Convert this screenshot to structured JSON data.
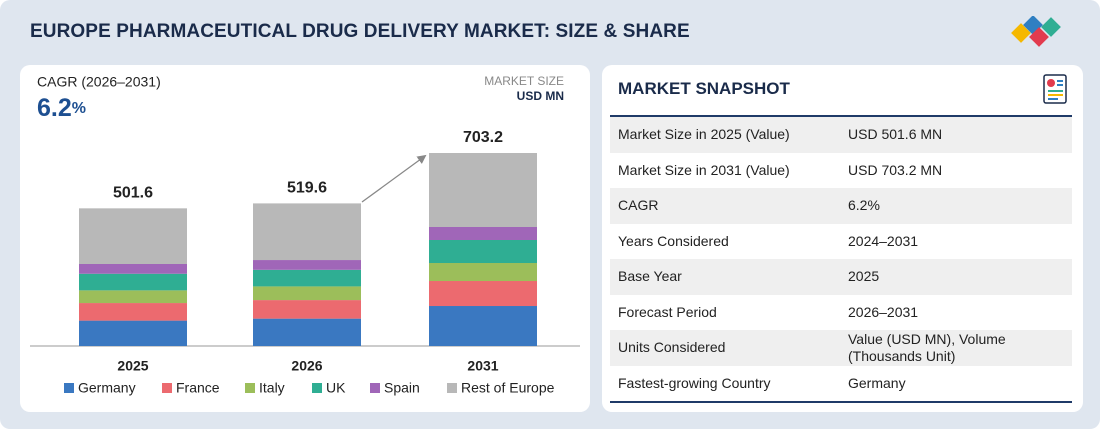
{
  "header": {
    "title": "EUROPE PHARMACEUTICAL DRUG DELIVERY MARKET: SIZE & SHARE"
  },
  "chart_data": {
    "type": "bar",
    "stacked": true,
    "cagr_label": "CAGR (2026–2031)",
    "cagr_value": "6.2",
    "cagr_unit": "%",
    "unit_title": "MARKET SIZE",
    "unit": "USD MN",
    "categories": [
      "2025",
      "2026",
      "2031"
    ],
    "totals": [
      501.6,
      519.6,
      703.2
    ],
    "series": [
      {
        "name": "Germany",
        "color": "#3a78c1",
        "values": [
          92.5,
          99.7,
          145.7
        ]
      },
      {
        "name": "France",
        "color": "#ec6a6f",
        "values": [
          64.0,
          67.6,
          91.1
        ]
      },
      {
        "name": "Italy",
        "color": "#9cbe5a",
        "values": [
          46.2,
          49.8,
          65.6
        ]
      },
      {
        "name": "UK",
        "color": "#2fae93",
        "values": [
          60.5,
          60.5,
          83.8
        ]
      },
      {
        "name": "Spain",
        "color": "#a066b8",
        "values": [
          35.6,
          35.6,
          47.4
        ]
      },
      {
        "name": "Rest of Europe",
        "color": "#b8b8b8",
        "values": [
          202.8,
          206.4,
          269.6
        ]
      }
    ]
  },
  "snapshot": {
    "title": "MARKET SNAPSHOT",
    "rows": [
      [
        "Market Size in 2025 (Value)",
        "USD 501.6 MN"
      ],
      [
        "Market Size in 2031 (Value)",
        "USD 703.2 MN"
      ],
      [
        "CAGR",
        "6.2%"
      ],
      [
        "Years Considered",
        "2024–2031"
      ],
      [
        "Base Year",
        "2025"
      ],
      [
        "Forecast Period",
        "2026–2031"
      ],
      [
        "Units Considered",
        "Value (USD MN), Volume (Thousands Unit)"
      ],
      [
        "Fastest-growing Country",
        "Germany"
      ]
    ]
  }
}
